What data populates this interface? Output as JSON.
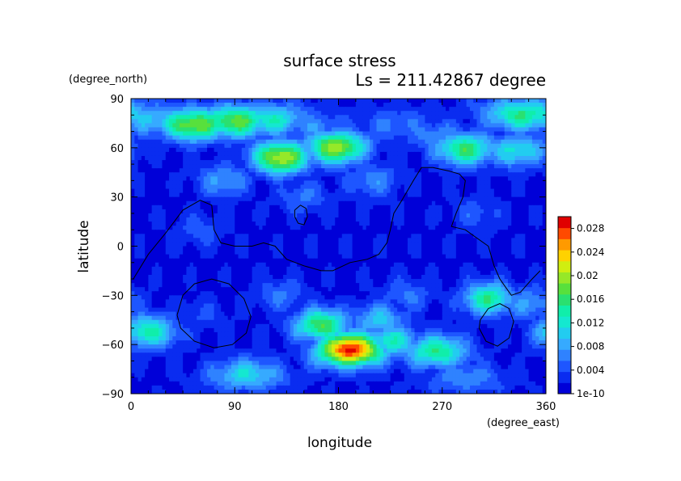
{
  "chart_data": {
    "type": "heatmap",
    "title": "surface stress",
    "subtitle": "Ls = 211.42867 degree",
    "xlabel": "longitude",
    "ylabel": "latitude",
    "x_units": "(degree_east)",
    "y_units": "(degree_north)",
    "xlim": [
      0,
      360
    ],
    "ylim": [
      -90,
      90
    ],
    "x_ticks": [
      "0",
      "90",
      "180",
      "270",
      "360"
    ],
    "y_ticks": [
      "90",
      "60",
      "30",
      "0",
      "−30",
      "−60",
      "−90"
    ],
    "x_tick_values": [
      0,
      90,
      180,
      270,
      360
    ],
    "y_tick_values": [
      90,
      60,
      30,
      0,
      -30,
      -60,
      -90
    ],
    "colorbar": {
      "min": 0,
      "max": 0.03,
      "labels": [
        "0.028",
        "0.024",
        "0.02",
        "0.016",
        "0.012",
        "0.008",
        "0.004",
        "1e-10"
      ],
      "label_values": [
        0.028,
        0.024,
        0.02,
        0.016,
        0.012,
        0.008,
        0.004,
        0
      ],
      "levels": 15,
      "colors": [
        "#0000d8",
        "#0a2cf0",
        "#1e56ff",
        "#2f82ff",
        "#36aaff",
        "#22ccf0",
        "#14e8d0",
        "#10eeaa",
        "#2ae070",
        "#58e03c",
        "#96e828",
        "#d0ee10",
        "#ffd200",
        "#ff9a00",
        "#ff4a00",
        "#e00000"
      ]
    },
    "background_value": 0.0015,
    "hotspots": [
      {
        "lon": 55,
        "lat": 74,
        "value": 0.019
      },
      {
        "lon": 90,
        "lat": 76,
        "value": 0.018
      },
      {
        "lon": 120,
        "lat": 77,
        "value": 0.013
      },
      {
        "lon": 20,
        "lat": 77,
        "value": 0.01
      },
      {
        "lon": 130,
        "lat": 54,
        "value": 0.021
      },
      {
        "lon": 178,
        "lat": 60,
        "value": 0.02
      },
      {
        "lon": 160,
        "lat": 72,
        "value": 0.007
      },
      {
        "lon": 230,
        "lat": 74,
        "value": 0.006
      },
      {
        "lon": 340,
        "lat": 80,
        "value": 0.015
      },
      {
        "lon": 290,
        "lat": 59,
        "value": 0.016
      },
      {
        "lon": 335,
        "lat": 58,
        "value": 0.012
      },
      {
        "lon": 265,
        "lat": 67,
        "value": 0.007
      },
      {
        "lon": 210,
        "lat": 40,
        "value": 0.007
      },
      {
        "lon": 80,
        "lat": 40,
        "value": 0.008
      },
      {
        "lon": 150,
        "lat": 30,
        "value": 0.006
      },
      {
        "lon": 300,
        "lat": 20,
        "value": 0.005
      },
      {
        "lon": 60,
        "lat": 10,
        "value": 0.005
      },
      {
        "lon": 15,
        "lat": -52,
        "value": 0.014
      },
      {
        "lon": 165,
        "lat": -48,
        "value": 0.017
      },
      {
        "lon": 190,
        "lat": -63,
        "value": 0.029
      },
      {
        "lon": 215,
        "lat": -45,
        "value": 0.01
      },
      {
        "lon": 225,
        "lat": -58,
        "value": 0.013
      },
      {
        "lon": 265,
        "lat": -64,
        "value": 0.015
      },
      {
        "lon": 310,
        "lat": -32,
        "value": 0.015
      },
      {
        "lon": 345,
        "lat": -35,
        "value": 0.008
      },
      {
        "lon": 100,
        "lat": -78,
        "value": 0.011
      },
      {
        "lon": 290,
        "lat": -80,
        "value": 0.007
      },
      {
        "lon": 130,
        "lat": -30,
        "value": 0.006
      },
      {
        "lon": 240,
        "lat": -30,
        "value": 0.006
      },
      {
        "lon": 60,
        "lat": -42,
        "value": 0.004
      }
    ],
    "contours": [
      {
        "name": "coastline-main",
        "points": [
          [
            2,
            -20
          ],
          [
            15,
            -5
          ],
          [
            30,
            8
          ],
          [
            45,
            22
          ],
          [
            60,
            28
          ],
          [
            70,
            25
          ],
          [
            72,
            10
          ],
          [
            78,
            2
          ],
          [
            90,
            0
          ],
          [
            105,
            0
          ],
          [
            115,
            2
          ],
          [
            125,
            0
          ],
          [
            135,
            -8
          ],
          [
            150,
            -12
          ],
          [
            165,
            -15
          ],
          [
            175,
            -15
          ],
          [
            190,
            -10
          ],
          [
            205,
            -8
          ],
          [
            215,
            -5
          ],
          [
            222,
            2
          ],
          [
            225,
            10
          ],
          [
            228,
            20
          ],
          [
            235,
            28
          ],
          [
            245,
            40
          ],
          [
            252,
            48
          ],
          [
            262,
            48
          ],
          [
            275,
            46
          ],
          [
            285,
            44
          ],
          [
            290,
            40
          ],
          [
            288,
            30
          ],
          [
            282,
            20
          ],
          [
            278,
            12
          ],
          [
            290,
            10
          ],
          [
            300,
            5
          ],
          [
            310,
            0
          ],
          [
            315,
            -12
          ],
          [
            320,
            -20
          ],
          [
            325,
            -25
          ],
          [
            330,
            -30
          ],
          [
            338,
            -28
          ],
          [
            348,
            -20
          ],
          [
            355,
            -15
          ]
        ]
      },
      {
        "name": "coastline-island",
        "points": [
          [
            142,
            22
          ],
          [
            147,
            25
          ],
          [
            152,
            23
          ],
          [
            153,
            18
          ],
          [
            150,
            13
          ],
          [
            145,
            14
          ],
          [
            142,
            18
          ],
          [
            142,
            22
          ]
        ]
      },
      {
        "name": "coastline-south-west",
        "points": [
          [
            40,
            -42
          ],
          [
            45,
            -30
          ],
          [
            55,
            -23
          ],
          [
            70,
            -20
          ],
          [
            85,
            -23
          ],
          [
            98,
            -32
          ],
          [
            104,
            -43
          ],
          [
            100,
            -53
          ],
          [
            88,
            -60
          ],
          [
            72,
            -62
          ],
          [
            55,
            -58
          ],
          [
            43,
            -50
          ],
          [
            40,
            -42
          ]
        ]
      },
      {
        "name": "coastline-south-east",
        "points": [
          [
            303,
            -45
          ],
          [
            310,
            -38
          ],
          [
            320,
            -35
          ],
          [
            328,
            -38
          ],
          [
            332,
            -46
          ],
          [
            328,
            -56
          ],
          [
            318,
            -61
          ],
          [
            308,
            -58
          ],
          [
            302,
            -50
          ],
          [
            303,
            -45
          ]
        ]
      }
    ]
  }
}
